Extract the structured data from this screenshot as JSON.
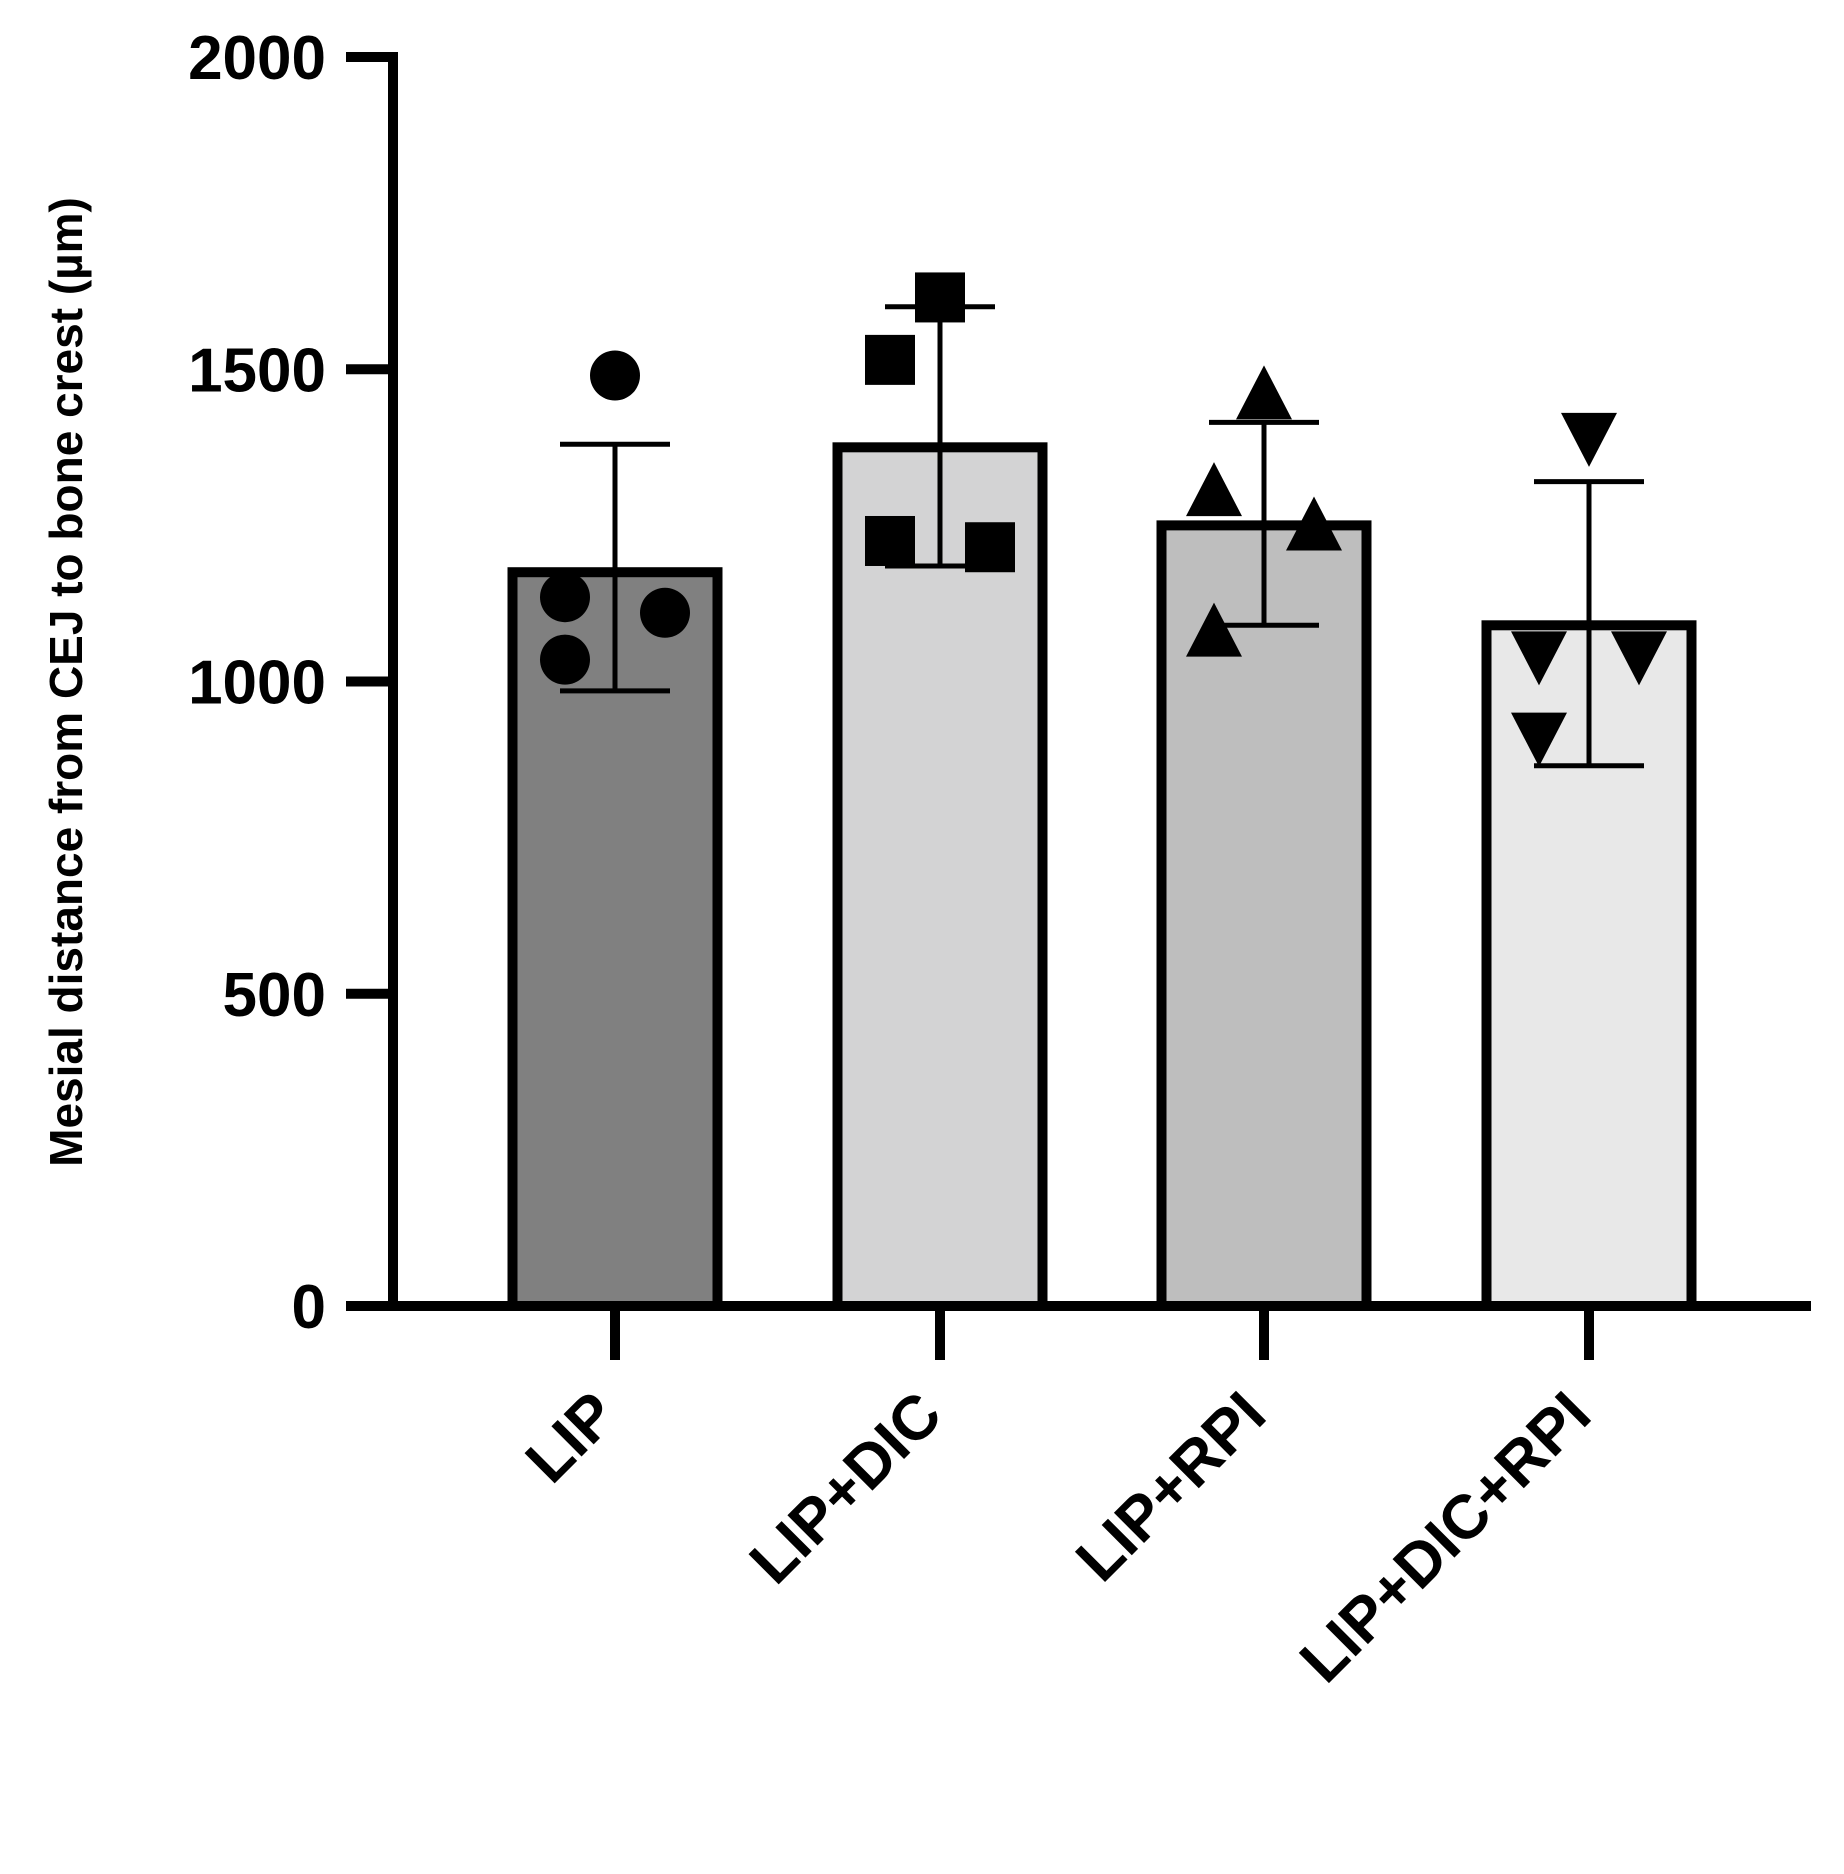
{
  "chart_data": {
    "type": "bar",
    "title": "",
    "xlabel": "",
    "ylabel": "Mesial distance from CEJ to bone crest (µm)",
    "ylim": [
      0,
      2000
    ],
    "yticks": [
      0,
      500,
      1000,
      1500,
      2000
    ],
    "grid": false,
    "legend": "none",
    "categories": [
      "LIP",
      "LIP+DIC",
      "LIP+RPI",
      "LIP+DIC+RPI"
    ],
    "values": [
      1175,
      1375,
      1250,
      1090
    ],
    "error_upper": [
      1380,
      1600,
      1415,
      1320
    ],
    "error_lower": [
      985,
      1185,
      1090,
      865
    ],
    "colors": [
      "#808080",
      "#d3d3d4",
      "#bebebe",
      "#e8e8e8"
    ],
    "markers": [
      "circle",
      "square",
      "triangle-up",
      "triangle-down"
    ],
    "points": [
      [
        1490,
        1135,
        1110,
        1035
      ],
      [
        1615,
        1515,
        1215,
        1225
      ],
      [
        1455,
        1300,
        1245,
        1075
      ],
      [
        1395,
        1045,
        1045,
        915
      ]
    ]
  }
}
